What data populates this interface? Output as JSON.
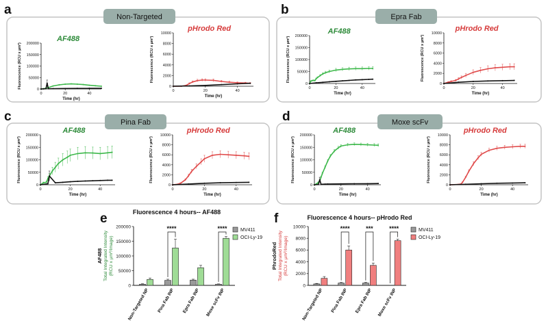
{
  "colors": {
    "green": "#3cb84a",
    "red": "#e04a4a",
    "black": "#111111",
    "grey": "#666666",
    "greenFill": "#9fdc96",
    "redFill": "#f07f7f",
    "greyFill": "#9a9a9a",
    "greenText": "#2e8b3a",
    "redText": "#d63a3a",
    "boxTitleBg": "#9aaea9",
    "boxStroke": "#c4c4c4"
  },
  "panels": [
    {
      "letter": "a",
      "title": "Non-Targeted"
    },
    {
      "letter": "b",
      "title": "Epra Fab"
    },
    {
      "letter": "c",
      "title": "Pina Fab"
    },
    {
      "letter": "d",
      "title": "Moxe scFv"
    }
  ],
  "axis_labels": {
    "y": "Fluorescence (RCU x µm²)",
    "x": "Time (hr)"
  },
  "chart_data": [
    {
      "id": "a-af488",
      "type": "line",
      "panel": "a",
      "title": "AF488",
      "xlabel": "Time (hr)",
      "ylabel": "Fluorescence (RCU x µm²)",
      "xlim": [
        0,
        50
      ],
      "ylim": [
        0,
        200000
      ],
      "xticks": [
        "0",
        "20",
        "40"
      ],
      "yticks": [
        "0",
        "50000",
        "100000",
        "150000",
        "200000"
      ],
      "series": [
        {
          "name": "OCI-Ly-19",
          "color": "green",
          "x": [
            0,
            2,
            4,
            6,
            10,
            15,
            20,
            25,
            30,
            35,
            40,
            45,
            50
          ],
          "y": [
            0,
            1000,
            3000,
            6000,
            13000,
            18000,
            21000,
            22000,
            21000,
            19000,
            16000,
            14000,
            12000
          ],
          "err": [
            0,
            0,
            0,
            0,
            0,
            0,
            0,
            0,
            0,
            0,
            0,
            0,
            0
          ]
        },
        {
          "name": "MV411",
          "color": "black",
          "x": [
            0,
            2,
            4,
            5,
            6,
            10,
            20,
            30,
            40,
            50
          ],
          "y": [
            0,
            500,
            1000,
            25000,
            1000,
            1500,
            2000,
            2500,
            2800,
            3000
          ],
          "err": [
            0,
            0,
            0,
            14000,
            0,
            0,
            0,
            0,
            0,
            0
          ]
        }
      ]
    },
    {
      "id": "a-phrodo",
      "type": "line",
      "panel": "a",
      "title": "pHrodo Red",
      "xlabel": "Time (hr)",
      "ylabel": "Fluorescence (RCU x µm²)",
      "xlim": [
        0,
        50
      ],
      "ylim": [
        0,
        10000
      ],
      "xticks": [
        "0",
        "20",
        "40"
      ],
      "yticks": [
        "0",
        "2000",
        "4000",
        "6000",
        "8000",
        "10000"
      ],
      "series": [
        {
          "name": "OCI-Ly-19",
          "color": "red",
          "x": [
            0,
            5,
            8,
            10,
            12,
            15,
            18,
            20,
            25,
            30,
            35,
            40,
            45,
            48
          ],
          "y": [
            0,
            0,
            150,
            500,
            800,
            1050,
            1150,
            1150,
            1100,
            900,
            750,
            650,
            600,
            550
          ],
          "err": [
            0,
            0,
            80,
            150,
            200,
            250,
            250,
            250,
            250,
            200,
            200,
            150,
            150,
            150
          ]
        },
        {
          "name": "MV411",
          "color": "black",
          "x": [
            0,
            10,
            20,
            30,
            40,
            48
          ],
          "y": [
            0,
            50,
            150,
            300,
            450,
            550
          ],
          "err": [
            0,
            0,
            0,
            0,
            0,
            0
          ]
        }
      ]
    },
    {
      "id": "b-af488",
      "type": "line",
      "panel": "b",
      "title": "AF488",
      "xlabel": "Time (hr)",
      "ylabel": "Fluorescence (RCU x µm²)",
      "xlim": [
        0,
        50
      ],
      "ylim": [
        0,
        200000
      ],
      "xticks": [
        "0",
        "20",
        "40"
      ],
      "yticks": [
        "0",
        "50000",
        "100000",
        "150000",
        "200000"
      ],
      "series": [
        {
          "name": "OCI-Ly-19",
          "color": "green",
          "x": [
            0,
            1,
            2,
            3,
            4,
            5,
            6,
            8,
            10,
            12,
            15,
            20,
            25,
            30,
            35,
            40,
            45,
            48
          ],
          "y": [
            0,
            10000,
            12000,
            13000,
            12000,
            20000,
            25000,
            33000,
            40000,
            45000,
            50000,
            56000,
            59000,
            61000,
            62000,
            62000,
            63000,
            63000
          ],
          "err": [
            0,
            2000,
            2000,
            2000,
            2000,
            3000,
            3000,
            4000,
            5000,
            6000,
            6000,
            7000,
            7000,
            7000,
            7000,
            7000,
            7000,
            7000
          ]
        },
        {
          "name": "MV411",
          "color": "black",
          "x": [
            0,
            5,
            10,
            15,
            20,
            25,
            30,
            35,
            40,
            45,
            48
          ],
          "y": [
            0,
            3000,
            5000,
            7000,
            9000,
            11000,
            13000,
            15000,
            16000,
            17000,
            18000
          ],
          "err": [
            0,
            0,
            0,
            0,
            0,
            0,
            0,
            0,
            0,
            0,
            0
          ]
        }
      ]
    },
    {
      "id": "b-phrodo",
      "type": "line",
      "panel": "b",
      "title": "pHrodo Red",
      "xlabel": "Time (hr)",
      "ylabel": "Fluorescence (RCU x µm²)",
      "xlim": [
        0,
        50
      ],
      "ylim": [
        0,
        10000
      ],
      "xticks": [
        "0",
        "20",
        "40"
      ],
      "yticks": [
        "0",
        "2000",
        "4000",
        "6000",
        "8000",
        "10000"
      ],
      "series": [
        {
          "name": "OCI-Ly-19",
          "color": "red",
          "x": [
            0,
            3,
            5,
            8,
            10,
            12,
            15,
            20,
            25,
            30,
            35,
            40,
            45,
            48
          ],
          "y": [
            0,
            250,
            400,
            600,
            900,
            1200,
            1600,
            2200,
            2600,
            2900,
            3100,
            3200,
            3300,
            3300
          ],
          "err": [
            0,
            100,
            150,
            200,
            250,
            300,
            400,
            500,
            550,
            600,
            600,
            600,
            600,
            600
          ]
        },
        {
          "name": "MV411",
          "color": "black",
          "x": [
            0,
            10,
            20,
            30,
            40,
            48
          ],
          "y": [
            0,
            250,
            400,
            500,
            550,
            600
          ],
          "err": [
            0,
            0,
            0,
            0,
            0,
            0
          ]
        }
      ]
    },
    {
      "id": "c-af488",
      "type": "line",
      "panel": "c",
      "title": "AF488",
      "xlabel": "Time (hr)",
      "ylabel": "Fluorescence (RCU x µm²)",
      "xlim": [
        0,
        50
      ],
      "ylim": [
        0,
        200000
      ],
      "xticks": [
        "0",
        "20",
        "40"
      ],
      "yticks": [
        "0",
        "50000",
        "100000",
        "150000",
        "200000"
      ],
      "series": [
        {
          "name": "OCI-Ly-19",
          "color": "green",
          "x": [
            0,
            2,
            4,
            5,
            6,
            8,
            10,
            12,
            15,
            18,
            20,
            25,
            30,
            35,
            40,
            45,
            48
          ],
          "y": [
            0,
            8000,
            10000,
            25000,
            35000,
            55000,
            70000,
            85000,
            100000,
            110000,
            118000,
            125000,
            128000,
            127000,
            125000,
            128000,
            130000
          ],
          "err": [
            0,
            3000,
            4000,
            8000,
            10000,
            15000,
            20000,
            22000,
            25000,
            25000,
            25000,
            25000,
            25000,
            24000,
            25000,
            25000,
            25000
          ]
        },
        {
          "name": "MV411",
          "color": "black",
          "x": [
            0,
            5,
            6,
            10,
            15,
            20,
            25,
            30,
            35,
            40,
            45,
            48
          ],
          "y": [
            0,
            4000,
            35000,
            8000,
            10000,
            12000,
            14000,
            15000,
            16000,
            17000,
            18000,
            18000
          ],
          "err": [
            0,
            0,
            20000,
            0,
            0,
            0,
            0,
            0,
            0,
            0,
            0,
            0
          ]
        }
      ]
    },
    {
      "id": "c-phrodo",
      "type": "line",
      "panel": "c",
      "title": "pHrodo Red",
      "xlabel": "Time (hr)",
      "ylabel": "Fluorescence (RCU x µm²)",
      "xlim": [
        0,
        50
      ],
      "ylim": [
        0,
        10000
      ],
      "xticks": [
        "0",
        "20",
        "40"
      ],
      "yticks": [
        "0",
        "2000",
        "4000",
        "6000",
        "8000",
        "10000"
      ],
      "series": [
        {
          "name": "OCI-Ly-19",
          "color": "red",
          "x": [
            0,
            3,
            5,
            8,
            10,
            12,
            15,
            18,
            20,
            25,
            30,
            35,
            40,
            45,
            48
          ],
          "y": [
            0,
            100,
            300,
            1000,
            1800,
            2700,
            3700,
            4600,
            5200,
            5900,
            6100,
            6000,
            5900,
            5800,
            5700
          ],
          "err": [
            0,
            0,
            100,
            200,
            300,
            400,
            500,
            600,
            700,
            700,
            700,
            700,
            700,
            700,
            700
          ]
        },
        {
          "name": "MV411",
          "color": "black",
          "x": [
            0,
            10,
            20,
            30,
            40,
            48
          ],
          "y": [
            0,
            150,
            300,
            400,
            450,
            500
          ],
          "err": [
            0,
            0,
            0,
            0,
            0,
            0
          ]
        }
      ]
    },
    {
      "id": "d-af488",
      "type": "line",
      "panel": "d",
      "title": "AF488",
      "xlabel": "Time (hr)",
      "ylabel": "Fluorescence (RCU x µm²)",
      "xlim": [
        0,
        50
      ],
      "ylim": [
        0,
        200000
      ],
      "xticks": [
        "0",
        "20",
        "40"
      ],
      "yticks": [
        "0",
        "50000",
        "100000",
        "150000",
        "200000"
      ],
      "series": [
        {
          "name": "OCI-Ly-19",
          "color": "green",
          "x": [
            0,
            2,
            3,
            4,
            5,
            6,
            8,
            10,
            12,
            15,
            18,
            20,
            25,
            30,
            35,
            40,
            45,
            48
          ],
          "y": [
            0,
            5000,
            10000,
            15000,
            30000,
            45000,
            70000,
            95000,
            115000,
            135000,
            148000,
            155000,
            160000,
            162000,
            161000,
            160000,
            159000,
            158000
          ],
          "err": [
            0,
            2000,
            2000,
            3000,
            5000,
            6000,
            6000,
            6000,
            6000,
            6000,
            6000,
            6000,
            6000,
            6000,
            6000,
            6000,
            6000,
            6000
          ]
        },
        {
          "name": "MV411",
          "color": "black",
          "x": [
            0,
            3,
            4,
            5,
            8,
            10,
            20,
            30,
            40,
            48
          ],
          "y": [
            0,
            1000,
            20000,
            2000,
            2500,
            3000,
            3500,
            4000,
            4500,
            5000
          ],
          "err": [
            0,
            0,
            10000,
            0,
            0,
            0,
            0,
            0,
            0,
            0
          ]
        }
      ]
    },
    {
      "id": "d-phrodo",
      "type": "line",
      "panel": "d",
      "title": "pHrodo Red",
      "xlabel": "Time (hr)",
      "ylabel": "Fluorescence (RCU x µm²)",
      "xlim": [
        0,
        50
      ],
      "ylim": [
        0,
        10000
      ],
      "xticks": [
        "0",
        "20",
        "40"
      ],
      "yticks": [
        "0",
        "2000",
        "4000",
        "6000",
        "8000",
        "10000"
      ],
      "series": [
        {
          "name": "OCI-Ly-19",
          "color": "red",
          "x": [
            0,
            5,
            7,
            8,
            10,
            12,
            15,
            18,
            20,
            25,
            30,
            35,
            40,
            45,
            48
          ],
          "y": [
            0,
            50,
            150,
            500,
            1500,
            2700,
            4200,
            5400,
            6100,
            6900,
            7300,
            7500,
            7600,
            7700,
            7700
          ],
          "err": [
            0,
            0,
            50,
            100,
            200,
            300,
            400,
            400,
            400,
            400,
            400,
            400,
            400,
            400,
            400
          ]
        },
        {
          "name": "MV411",
          "color": "black",
          "x": [
            0,
            10,
            20,
            30,
            40,
            48
          ],
          "y": [
            0,
            100,
            200,
            300,
            350,
            400
          ],
          "err": [
            0,
            0,
            0,
            0,
            0,
            0
          ]
        }
      ]
    },
    {
      "id": "e",
      "type": "bar",
      "panel": "e",
      "title": "Fluorescence 4 hours-- AF488",
      "ylabel_colored": "AF488",
      "ylabel": "Total Integrated Intensity",
      "ylabel2": "(RCU x µm²/Image)",
      "ylim": [
        0,
        200000
      ],
      "yticks": [
        "0",
        "50000",
        "100000",
        "150000",
        "200000"
      ],
      "categories": [
        "Non-Targeted NP",
        "Pina Fab INP",
        "Epra Fab INP",
        "Moxe scFv INP"
      ],
      "series": [
        {
          "name": "MV411",
          "color": "greyFill",
          "values": [
            4000,
            17000,
            18000,
            4000
          ],
          "err": [
            1500,
            4000,
            3000,
            1000
          ]
        },
        {
          "name": "OCI-Ly-19",
          "color": "greenFill",
          "values": [
            20000,
            127000,
            60000,
            160000
          ],
          "err": [
            5000,
            30000,
            8000,
            6000
          ]
        }
      ],
      "significance": [
        {
          "category": 1,
          "label": "****"
        },
        {
          "category": 3,
          "label": "****"
        }
      ]
    },
    {
      "id": "f",
      "type": "bar",
      "panel": "f",
      "title": "Fluorescence 4 hours-- pHrodo Red",
      "ylabel_colored": "PhrodoRed",
      "ylabel": "Total Integrated Intensity",
      "ylabel2": "(RCU x µm²/Image)",
      "ylim": [
        0,
        10000
      ],
      "yticks": [
        "0",
        "2000",
        "4000",
        "6000",
        "8000",
        "10000"
      ],
      "categories": [
        "Non-Targeted NP",
        "Pina Fab INP",
        "Epra Fab INP",
        "Moxe scFv INP"
      ],
      "series": [
        {
          "name": "MV411",
          "color": "greyFill",
          "values": [
            250,
            400,
            400,
            0
          ],
          "err": [
            80,
            100,
            100,
            0
          ]
        },
        {
          "name": "OCI-Ly-19",
          "color": "redFill",
          "values": [
            1200,
            6000,
            3400,
            7600
          ],
          "err": [
            300,
            700,
            400,
            250
          ]
        }
      ],
      "significance": [
        {
          "category": 1,
          "label": "****"
        },
        {
          "category": 2,
          "label": "***"
        },
        {
          "category": 3,
          "label": "****"
        }
      ]
    }
  ]
}
